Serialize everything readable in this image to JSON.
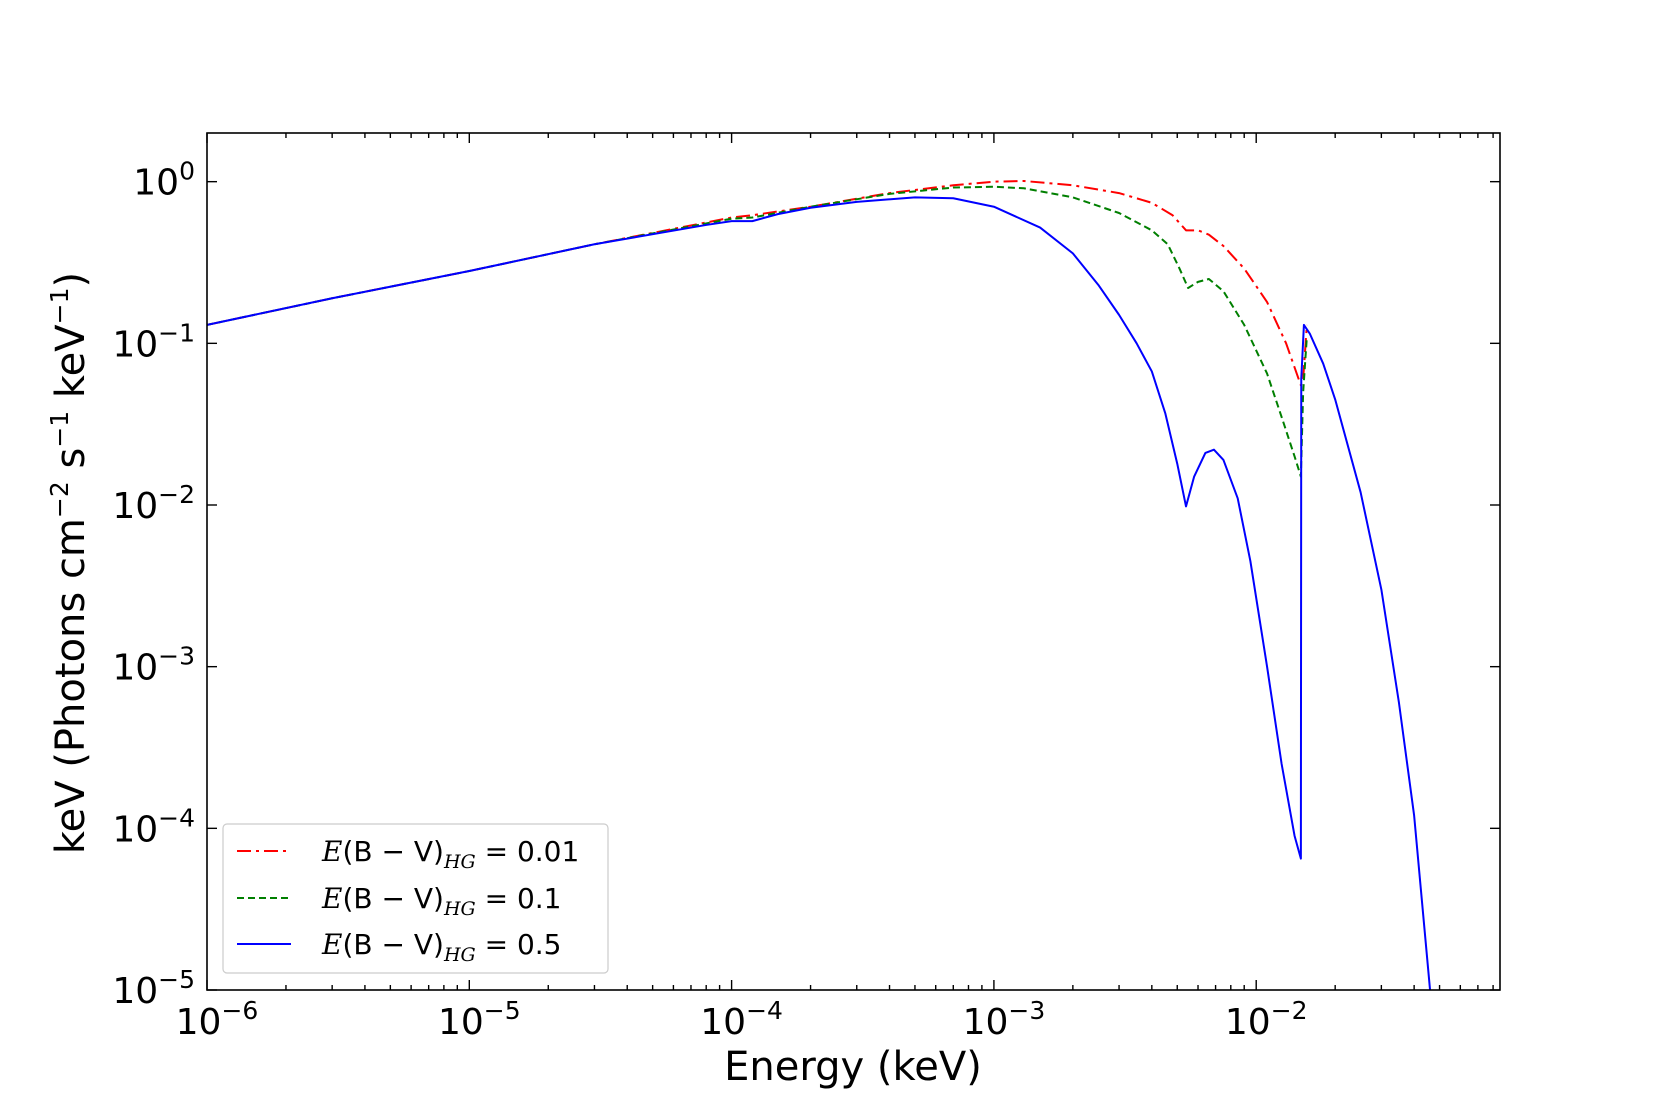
{
  "chart_data": {
    "type": "line",
    "title": "",
    "xlabel": "Energy (keV)",
    "ylabel": {
      "prefix": "keV (Photons cm",
      "exp1": "−2",
      "mid1": " s",
      "exp2": "−1",
      "mid2": " keV",
      "exp3": "−1",
      "suffix": ")"
    },
    "xscale": "log",
    "yscale": "log",
    "xlim": [
      1e-06,
      0.085
    ],
    "ylim": [
      1e-05,
      2.0
    ],
    "grid": false,
    "legend_position": "lower-left",
    "x_ticks": [
      {
        "value": 1e-06,
        "base": "10",
        "exp": "−6"
      },
      {
        "value": 1e-05,
        "base": "10",
        "exp": "−5"
      },
      {
        "value": 0.0001,
        "base": "10",
        "exp": "−4"
      },
      {
        "value": 0.001,
        "base": "10",
        "exp": "−3"
      },
      {
        "value": 0.01,
        "base": "10",
        "exp": "−2"
      }
    ],
    "y_ticks": [
      {
        "value": 1e-05,
        "base": "10",
        "exp": "−5"
      },
      {
        "value": 0.0001,
        "base": "10",
        "exp": "−4"
      },
      {
        "value": 0.001,
        "base": "10",
        "exp": "−3"
      },
      {
        "value": 0.01,
        "base": "10",
        "exp": "−2"
      },
      {
        "value": 0.1,
        "base": "10",
        "exp": "−1"
      },
      {
        "value": 1,
        "base": "10",
        "exp": "0"
      }
    ],
    "series": [
      {
        "name": "E(B − V)HG = 0.01",
        "legend": {
          "pre": "E",
          "paren": "(B − V)",
          "sub": "HG",
          "post": " = 0.01"
        },
        "color": "#ff0000",
        "dash": "14 5 3 5",
        "points": [
          [
            1e-06,
            0.13
          ],
          [
            3e-06,
            0.19
          ],
          [
            1e-05,
            0.28
          ],
          [
            3e-05,
            0.41
          ],
          [
            0.0001,
            0.6
          ],
          [
            0.00012,
            0.62
          ],
          [
            0.0002,
            0.7
          ],
          [
            0.0004,
            0.85
          ],
          [
            0.0007,
            0.95
          ],
          [
            0.001,
            1.0
          ],
          [
            0.0013,
            1.01
          ],
          [
            0.002,
            0.95
          ],
          [
            0.003,
            0.85
          ],
          [
            0.004,
            0.74
          ],
          [
            0.0048,
            0.62
          ],
          [
            0.0054,
            0.5
          ],
          [
            0.006,
            0.5
          ],
          [
            0.0066,
            0.47
          ],
          [
            0.0075,
            0.4
          ],
          [
            0.009,
            0.29
          ],
          [
            0.011,
            0.18
          ],
          [
            0.013,
            0.1
          ],
          [
            0.0148,
            0.055
          ],
          [
            0.0151,
            0.06
          ],
          [
            0.0156,
            0.13
          ]
        ]
      },
      {
        "name": "E(B − V)HG = 0.1",
        "legend": {
          "pre": "E",
          "paren": "(B − V)",
          "sub": "HG",
          "post": " = 0.1"
        },
        "color": "#007f00",
        "dash": "7 4",
        "points": [
          [
            1e-06,
            0.13
          ],
          [
            3e-06,
            0.19
          ],
          [
            1e-05,
            0.28
          ],
          [
            3e-05,
            0.41
          ],
          [
            0.0001,
            0.59
          ],
          [
            0.00012,
            0.6
          ],
          [
            0.0002,
            0.7
          ],
          [
            0.0004,
            0.84
          ],
          [
            0.0007,
            0.92
          ],
          [
            0.001,
            0.93
          ],
          [
            0.0013,
            0.91
          ],
          [
            0.002,
            0.8
          ],
          [
            0.003,
            0.64
          ],
          [
            0.004,
            0.5
          ],
          [
            0.0046,
            0.41
          ],
          [
            0.0051,
            0.29
          ],
          [
            0.0055,
            0.22
          ],
          [
            0.006,
            0.24
          ],
          [
            0.0066,
            0.25
          ],
          [
            0.0075,
            0.21
          ],
          [
            0.009,
            0.13
          ],
          [
            0.011,
            0.065
          ],
          [
            0.0125,
            0.035
          ],
          [
            0.014,
            0.02
          ],
          [
            0.0148,
            0.015
          ],
          [
            0.0151,
            0.05
          ],
          [
            0.0156,
            0.11
          ]
        ]
      },
      {
        "name": "E(B − V)HG = 0.5",
        "legend": {
          "pre": "E",
          "paren": "(B − V)",
          "sub": "HG",
          "post": " = 0.5"
        },
        "color": "#0000ff",
        "dash": "",
        "points": [
          [
            1e-06,
            0.13
          ],
          [
            3e-06,
            0.19
          ],
          [
            1e-05,
            0.28
          ],
          [
            3e-05,
            0.41
          ],
          [
            8e-05,
            0.54
          ],
          [
            0.0001,
            0.57
          ],
          [
            0.00012,
            0.57
          ],
          [
            0.00015,
            0.63
          ],
          [
            0.0002,
            0.69
          ],
          [
            0.0003,
            0.75
          ],
          [
            0.0005,
            0.8
          ],
          [
            0.0007,
            0.79
          ],
          [
            0.001,
            0.7
          ],
          [
            0.0015,
            0.52
          ],
          [
            0.002,
            0.36
          ],
          [
            0.0025,
            0.23
          ],
          [
            0.003,
            0.15
          ],
          [
            0.0035,
            0.1
          ],
          [
            0.004,
            0.067
          ],
          [
            0.0045,
            0.037
          ],
          [
            0.005,
            0.018
          ],
          [
            0.0054,
            0.0098
          ],
          [
            0.0058,
            0.015
          ],
          [
            0.0064,
            0.021
          ],
          [
            0.0069,
            0.022
          ],
          [
            0.0075,
            0.019
          ],
          [
            0.0085,
            0.011
          ],
          [
            0.0095,
            0.0045
          ],
          [
            0.011,
            0.001
          ],
          [
            0.0125,
            0.00025
          ],
          [
            0.014,
            9e-05
          ],
          [
            0.0148,
            6.5e-05
          ],
          [
            0.01485,
            0.06
          ],
          [
            0.0152,
            0.13
          ],
          [
            0.016,
            0.115
          ],
          [
            0.018,
            0.075
          ],
          [
            0.02,
            0.045
          ],
          [
            0.025,
            0.012
          ],
          [
            0.03,
            0.003
          ],
          [
            0.035,
            0.0006
          ],
          [
            0.04,
            0.00012
          ],
          [
            0.046,
            1e-05
          ]
        ]
      }
    ]
  }
}
